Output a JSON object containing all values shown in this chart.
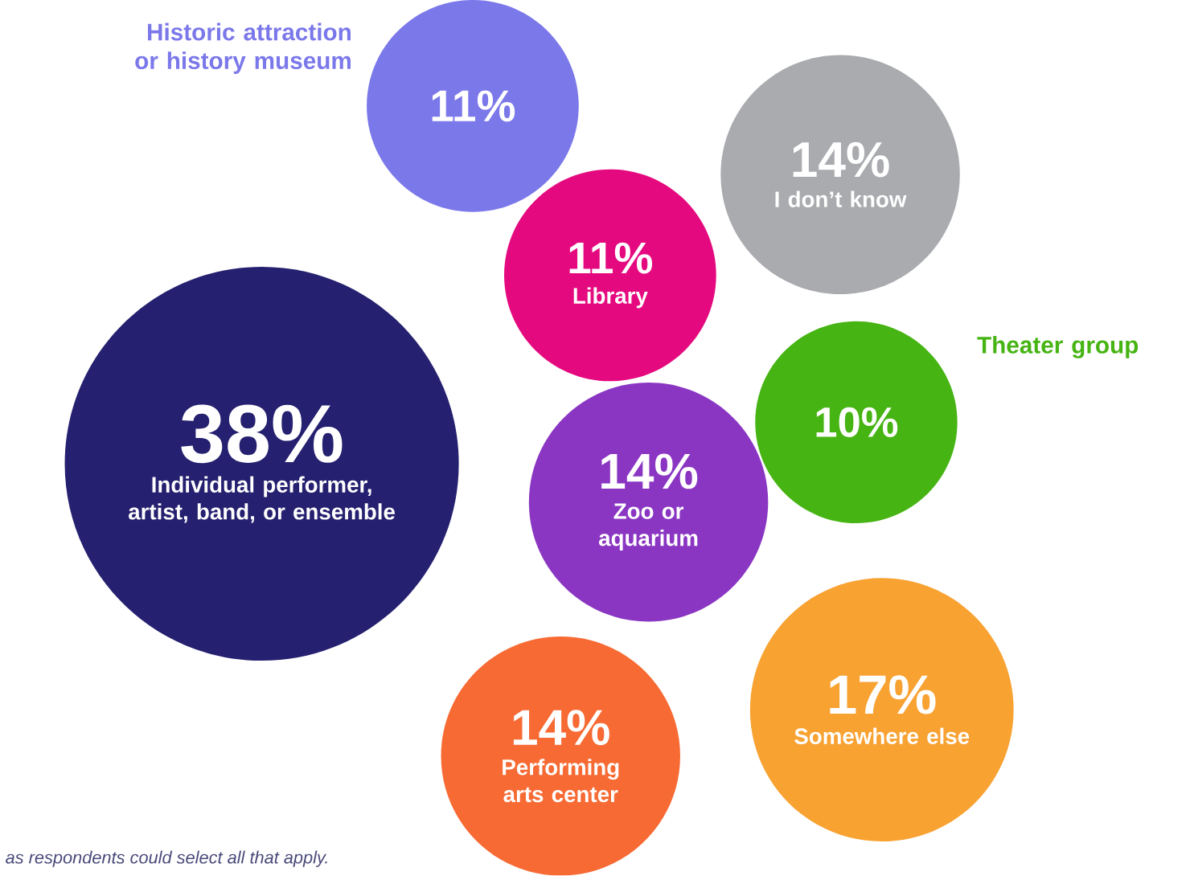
{
  "chart_data": {
    "type": "other",
    "categories": [
      "Historic attraction or history museum",
      "I don’t know",
      "Library",
      "Theater group",
      "Individual performer, artist, band, or ensemble",
      "Zoo or aquarium",
      "Somewhere else",
      "Performing arts center"
    ],
    "values": [
      11,
      14,
      11,
      10,
      38,
      14,
      17,
      14
    ],
    "value_labels": [
      "11%",
      "14%",
      "11%",
      "10%",
      "38%",
      "14%",
      "17%",
      "14%"
    ],
    "colors": [
      "#7b78ea",
      "#a9abae",
      "#e5097f",
      "#46b413",
      "#25206f",
      "#8a36c3",
      "#f8a232",
      "#f76a33"
    ],
    "annotations": [
      "as respondents could select all that apply."
    ]
  }
}
